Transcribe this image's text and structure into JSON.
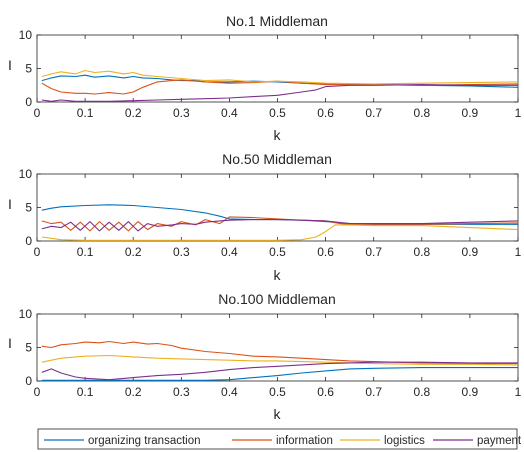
{
  "chart_data": [
    {
      "type": "line",
      "title": "No.1 Middleman",
      "xlabel": "k",
      "ylabel": "I",
      "xlim": [
        0,
        1
      ],
      "ylim": [
        0,
        10
      ],
      "xticks": [
        "0",
        "0.1",
        "0.2",
        "0.3",
        "0.4",
        "0.5",
        "0.6",
        "0.7",
        "0.8",
        "0.9",
        "1"
      ],
      "yticks": [
        "0",
        "5",
        "10"
      ],
      "grid": false,
      "series": [
        {
          "name": "organizing transaction",
          "color": "#0072BD",
          "x": [
            0.01,
            0.03,
            0.05,
            0.08,
            0.1,
            0.12,
            0.15,
            0.18,
            0.2,
            0.22,
            0.25,
            0.28,
            0.3,
            0.33,
            0.35,
            0.4,
            0.45,
            0.5,
            0.55,
            0.6,
            0.65,
            0.7,
            0.8,
            0.9,
            1.0
          ],
          "y": [
            3.2,
            3.6,
            3.9,
            3.8,
            4.0,
            3.7,
            3.9,
            3.6,
            3.8,
            3.6,
            3.5,
            3.3,
            3.2,
            3.2,
            3.0,
            3.0,
            3.1,
            3.0,
            2.8,
            2.7,
            2.6,
            2.6,
            2.5,
            2.4,
            2.2
          ]
        },
        {
          "name": "information",
          "color": "#D95319",
          "x": [
            0.01,
            0.03,
            0.05,
            0.08,
            0.1,
            0.12,
            0.15,
            0.18,
            0.2,
            0.22,
            0.25,
            0.28,
            0.3,
            0.35,
            0.4,
            0.45,
            0.5,
            0.55,
            0.6,
            0.7,
            0.8,
            0.9,
            1.0
          ],
          "y": [
            2.8,
            2.0,
            1.5,
            1.3,
            1.3,
            1.2,
            1.4,
            1.2,
            1.5,
            2.2,
            3.0,
            3.2,
            3.3,
            3.0,
            2.8,
            2.9,
            3.1,
            2.8,
            2.6,
            2.6,
            2.5,
            2.6,
            2.7
          ]
        },
        {
          "name": "logistics",
          "color": "#EDB120",
          "x": [
            0.01,
            0.03,
            0.05,
            0.08,
            0.1,
            0.12,
            0.15,
            0.18,
            0.2,
            0.22,
            0.25,
            0.3,
            0.35,
            0.4,
            0.45,
            0.5,
            0.55,
            0.6,
            0.7,
            0.8,
            0.9,
            1.0
          ],
          "y": [
            3.8,
            4.2,
            4.5,
            4.2,
            4.7,
            4.4,
            4.6,
            4.2,
            4.4,
            4.0,
            3.8,
            3.5,
            3.2,
            3.3,
            3.0,
            3.1,
            3.0,
            2.8,
            2.7,
            2.8,
            2.9,
            3.0
          ]
        },
        {
          "name": "payment",
          "color": "#7E2F8E",
          "x": [
            0.01,
            0.03,
            0.05,
            0.08,
            0.1,
            0.15,
            0.2,
            0.25,
            0.3,
            0.35,
            0.4,
            0.45,
            0.5,
            0.55,
            0.58,
            0.6,
            0.65,
            0.7,
            0.8,
            0.9,
            1.0
          ],
          "y": [
            0.3,
            0.1,
            0.3,
            0.1,
            0.1,
            0.1,
            0.2,
            0.3,
            0.4,
            0.5,
            0.6,
            0.8,
            1.0,
            1.5,
            1.8,
            2.3,
            2.5,
            2.5,
            2.6,
            2.5,
            2.5
          ]
        }
      ]
    },
    {
      "type": "line",
      "title": "No.50 Middleman",
      "xlabel": "k",
      "ylabel": "I",
      "xlim": [
        0,
        1
      ],
      "ylim": [
        0,
        10
      ],
      "xticks": [
        "0",
        "0.1",
        "0.2",
        "0.3",
        "0.4",
        "0.5",
        "0.6",
        "0.7",
        "0.8",
        "0.9",
        "1"
      ],
      "yticks": [
        "0",
        "5",
        "10"
      ],
      "grid": false,
      "series": [
        {
          "name": "organizing transaction",
          "color": "#0072BD",
          "x": [
            0.01,
            0.03,
            0.05,
            0.1,
            0.15,
            0.2,
            0.25,
            0.3,
            0.35,
            0.38,
            0.4,
            0.45,
            0.5,
            0.55,
            0.6,
            0.65,
            0.7,
            0.8,
            0.9,
            1.0
          ],
          "y": [
            4.6,
            4.9,
            5.1,
            5.3,
            5.4,
            5.3,
            5.0,
            4.7,
            4.2,
            3.7,
            3.3,
            3.2,
            3.2,
            3.1,
            2.9,
            2.6,
            2.5,
            2.5,
            2.5,
            2.5
          ]
        },
        {
          "name": "information",
          "color": "#D95319",
          "x": [
            0.01,
            0.03,
            0.05,
            0.07,
            0.09,
            0.11,
            0.13,
            0.15,
            0.17,
            0.19,
            0.21,
            0.23,
            0.25,
            0.28,
            0.3,
            0.33,
            0.35,
            0.38,
            0.4,
            0.45,
            0.5,
            0.55,
            0.6,
            0.63,
            0.65,
            0.7,
            0.8,
            0.9,
            1.0
          ],
          "y": [
            3.0,
            2.6,
            2.8,
            1.6,
            2.8,
            1.5,
            2.9,
            1.6,
            2.8,
            1.5,
            2.9,
            1.7,
            2.6,
            2.2,
            2.9,
            2.4,
            3.2,
            2.6,
            3.6,
            3.5,
            3.3,
            3.1,
            3.0,
            2.6,
            2.5,
            2.5,
            2.5,
            2.6,
            2.7
          ]
        },
        {
          "name": "logistics",
          "color": "#EDB120",
          "x": [
            0.01,
            0.03,
            0.05,
            0.1,
            0.2,
            0.3,
            0.4,
            0.5,
            0.55,
            0.58,
            0.6,
            0.62,
            0.65,
            0.7,
            0.8,
            0.9,
            1.0
          ],
          "y": [
            0.6,
            0.4,
            0.2,
            0.1,
            0.1,
            0.1,
            0.1,
            0.1,
            0.2,
            0.6,
            1.4,
            2.4,
            2.4,
            2.3,
            2.3,
            2.0,
            1.7
          ]
        },
        {
          "name": "payment",
          "color": "#7E2F8E",
          "x": [
            0.01,
            0.03,
            0.05,
            0.07,
            0.09,
            0.11,
            0.13,
            0.15,
            0.17,
            0.19,
            0.21,
            0.23,
            0.25,
            0.28,
            0.3,
            0.33,
            0.35,
            0.38,
            0.4,
            0.45,
            0.5,
            0.55,
            0.6,
            0.65,
            0.7,
            0.8,
            0.9,
            1.0
          ],
          "y": [
            1.8,
            2.2,
            2.0,
            2.8,
            1.6,
            2.9,
            1.5,
            2.8,
            1.6,
            2.9,
            1.5,
            2.6,
            2.2,
            2.4,
            2.6,
            2.5,
            2.8,
            3.0,
            3.1,
            3.2,
            3.2,
            3.1,
            3.0,
            2.6,
            2.6,
            2.6,
            2.8,
            3.0
          ]
        }
      ]
    },
    {
      "type": "line",
      "title": "No.100 Middleman",
      "xlabel": "k",
      "ylabel": "I",
      "xlim": [
        0,
        1
      ],
      "ylim": [
        0,
        10
      ],
      "xticks": [
        "0",
        "0.1",
        "0.2",
        "0.3",
        "0.4",
        "0.5",
        "0.6",
        "0.7",
        "0.8",
        "0.9",
        "1"
      ],
      "yticks": [
        "0",
        "5",
        "10"
      ],
      "grid": false,
      "series": [
        {
          "name": "organizing transaction",
          "color": "#0072BD",
          "x": [
            0.01,
            0.05,
            0.1,
            0.2,
            0.3,
            0.35,
            0.4,
            0.45,
            0.5,
            0.55,
            0.6,
            0.65,
            0.7,
            0.8,
            0.9,
            1.0
          ],
          "y": [
            0.1,
            0.1,
            0.1,
            0.1,
            0.1,
            0.1,
            0.2,
            0.5,
            0.8,
            1.2,
            1.5,
            1.8,
            1.9,
            2.0,
            2.0,
            2.0
          ]
        },
        {
          "name": "information",
          "color": "#D95319",
          "x": [
            0.01,
            0.03,
            0.05,
            0.08,
            0.1,
            0.13,
            0.15,
            0.18,
            0.2,
            0.23,
            0.25,
            0.28,
            0.3,
            0.35,
            0.4,
            0.45,
            0.5,
            0.55,
            0.6,
            0.65,
            0.7,
            0.8,
            0.9,
            1.0
          ],
          "y": [
            5.2,
            5.0,
            5.4,
            5.6,
            5.8,
            5.7,
            5.9,
            5.6,
            5.8,
            5.5,
            5.6,
            5.3,
            4.9,
            4.4,
            4.1,
            3.7,
            3.6,
            3.4,
            3.2,
            3.0,
            2.9,
            2.7,
            2.6,
            2.6
          ]
        },
        {
          "name": "logistics",
          "color": "#EDB120",
          "x": [
            0.01,
            0.03,
            0.05,
            0.1,
            0.15,
            0.2,
            0.25,
            0.3,
            0.35,
            0.4,
            0.45,
            0.5,
            0.55,
            0.6,
            0.7,
            0.8,
            0.9,
            1.0
          ],
          "y": [
            2.8,
            3.1,
            3.4,
            3.7,
            3.8,
            3.6,
            3.4,
            3.3,
            3.2,
            3.1,
            3.0,
            3.0,
            2.9,
            2.8,
            2.6,
            2.5,
            2.5,
            2.4
          ]
        },
        {
          "name": "payment",
          "color": "#7E2F8E",
          "x": [
            0.01,
            0.03,
            0.05,
            0.08,
            0.1,
            0.15,
            0.2,
            0.25,
            0.3,
            0.35,
            0.4,
            0.45,
            0.5,
            0.55,
            0.6,
            0.65,
            0.7,
            0.8,
            0.9,
            1.0
          ],
          "y": [
            1.3,
            1.8,
            1.2,
            0.6,
            0.4,
            0.2,
            0.5,
            0.8,
            1.0,
            1.3,
            1.7,
            2.0,
            2.2,
            2.4,
            2.6,
            2.7,
            2.8,
            2.8,
            2.7,
            2.7
          ]
        }
      ]
    }
  ],
  "legend": {
    "position": "bottom",
    "entries": [
      {
        "label": "organizing transaction",
        "color": "#0072BD"
      },
      {
        "label": "information",
        "color": "#D95319"
      },
      {
        "label": "logistics",
        "color": "#EDB120"
      },
      {
        "label": "payment",
        "color": "#7E2F8E"
      }
    ]
  }
}
